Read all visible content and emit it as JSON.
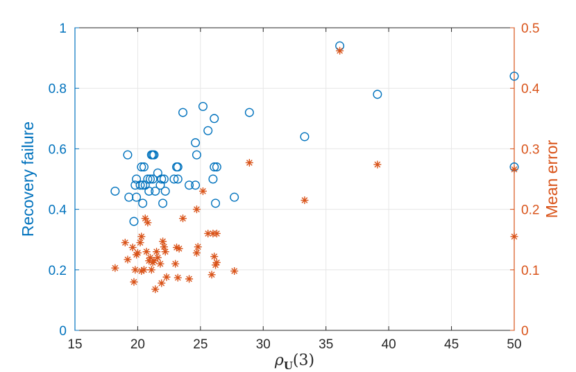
{
  "chart_data": {
    "type": "scatter",
    "title": "",
    "xlabel": "ρU(3)",
    "xlabel_parts": {
      "symbol": "ρ",
      "subscript": "U",
      "arg": "(3)"
    },
    "ylabel_left": "Recovery failure",
    "ylabel_right": "Mean error",
    "xlim": [
      15,
      50
    ],
    "ylim_left": [
      0,
      1
    ],
    "ylim_right": [
      0,
      0.5
    ],
    "xticks": [
      "15",
      "20",
      "25",
      "30",
      "35",
      "40",
      "45",
      "50"
    ],
    "yticks_left": [
      "0",
      "0.2",
      "0.4",
      "0.6",
      "0.8",
      "1"
    ],
    "yticks_right": [
      "0",
      "0.1",
      "0.2",
      "0.3",
      "0.4",
      "0.5"
    ],
    "grid": true,
    "colors": {
      "left": "#0072BD",
      "right": "#D95319",
      "grid": "#E6E6E6",
      "axis": "#262626"
    },
    "series": [
      {
        "axis": "left",
        "marker": "circle",
        "points": [
          [
            18.2,
            0.46
          ],
          [
            19.2,
            0.58
          ],
          [
            19.3,
            0.44
          ],
          [
            19.7,
            0.36
          ],
          [
            19.8,
            0.48
          ],
          [
            19.9,
            0.44
          ],
          [
            19.9,
            0.5
          ],
          [
            20.2,
            0.48
          ],
          [
            20.3,
            0.54
          ],
          [
            20.4,
            0.48
          ],
          [
            20.4,
            0.42
          ],
          [
            20.5,
            0.54
          ],
          [
            20.6,
            0.48
          ],
          [
            20.8,
            0.5
          ],
          [
            20.9,
            0.46
          ],
          [
            21.0,
            0.5
          ],
          [
            21.1,
            0.58
          ],
          [
            21.2,
            0.5
          ],
          [
            21.2,
            0.58
          ],
          [
            21.3,
            0.58
          ],
          [
            21.4,
            0.46
          ],
          [
            21.6,
            0.52
          ],
          [
            21.8,
            0.48
          ],
          [
            21.9,
            0.5
          ],
          [
            22.0,
            0.42
          ],
          [
            22.1,
            0.5
          ],
          [
            22.2,
            0.46
          ],
          [
            22.9,
            0.5
          ],
          [
            23.1,
            0.54
          ],
          [
            23.2,
            0.5
          ],
          [
            23.2,
            0.54
          ],
          [
            23.6,
            0.72
          ],
          [
            24.1,
            0.48
          ],
          [
            24.6,
            0.62
          ],
          [
            24.6,
            0.48
          ],
          [
            24.7,
            0.58
          ],
          [
            25.2,
            0.74
          ],
          [
            25.6,
            0.66
          ],
          [
            26.0,
            0.5
          ],
          [
            26.1,
            0.54
          ],
          [
            26.1,
            0.7
          ],
          [
            26.2,
            0.42
          ],
          [
            26.3,
            0.54
          ],
          [
            27.7,
            0.44
          ],
          [
            28.9,
            0.72
          ],
          [
            33.3,
            0.64
          ],
          [
            36.1,
            0.94
          ],
          [
            39.1,
            0.78
          ],
          [
            50.0,
            0.84
          ],
          [
            50.0,
            0.54
          ]
        ]
      },
      {
        "axis": "right",
        "marker": "asterisk",
        "points": [
          [
            18.2,
            0.103
          ],
          [
            19.0,
            0.145
          ],
          [
            19.2,
            0.117
          ],
          [
            19.6,
            0.137
          ],
          [
            19.7,
            0.08
          ],
          [
            19.8,
            0.1
          ],
          [
            19.9,
            0.125
          ],
          [
            20.0,
            0.128
          ],
          [
            20.2,
            0.145
          ],
          [
            20.3,
            0.155
          ],
          [
            20.3,
            0.098
          ],
          [
            20.5,
            0.1
          ],
          [
            20.6,
            0.185
          ],
          [
            20.7,
            0.13
          ],
          [
            20.8,
            0.178
          ],
          [
            20.9,
            0.115
          ],
          [
            21.0,
            0.12
          ],
          [
            21.1,
            0.1
          ],
          [
            21.2,
            0.112
          ],
          [
            21.3,
            0.115
          ],
          [
            21.4,
            0.068
          ],
          [
            21.5,
            0.13
          ],
          [
            21.6,
            0.12
          ],
          [
            21.8,
            0.11
          ],
          [
            21.9,
            0.078
          ],
          [
            22.0,
            0.147
          ],
          [
            22.1,
            0.138
          ],
          [
            22.2,
            0.13
          ],
          [
            22.3,
            0.088
          ],
          [
            23.0,
            0.11
          ],
          [
            23.1,
            0.137
          ],
          [
            23.2,
            0.087
          ],
          [
            23.3,
            0.135
          ],
          [
            23.6,
            0.185
          ],
          [
            24.1,
            0.085
          ],
          [
            24.7,
            0.128
          ],
          [
            24.7,
            0.2
          ],
          [
            24.8,
            0.138
          ],
          [
            25.2,
            0.23
          ],
          [
            25.6,
            0.16
          ],
          [
            25.9,
            0.092
          ],
          [
            26.0,
            0.16
          ],
          [
            26.1,
            0.122
          ],
          [
            26.2,
            0.108
          ],
          [
            26.3,
            0.16
          ],
          [
            26.3,
            0.112
          ],
          [
            27.7,
            0.098
          ],
          [
            28.9,
            0.277
          ],
          [
            33.3,
            0.215
          ],
          [
            36.1,
            0.462
          ],
          [
            39.1,
            0.274
          ],
          [
            50.0,
            0.266
          ],
          [
            50.0,
            0.155
          ]
        ]
      }
    ]
  }
}
